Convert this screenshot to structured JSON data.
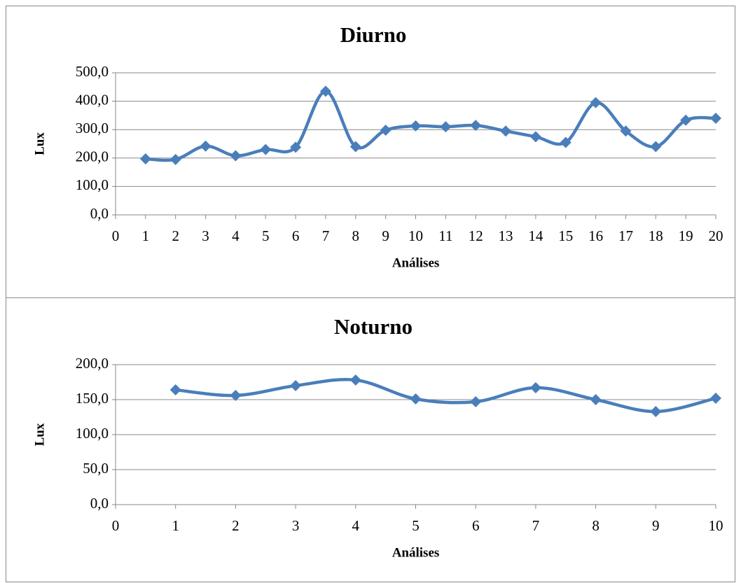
{
  "chart_data": [
    {
      "type": "line",
      "title": "Diurno",
      "y_label": "Lux",
      "x_label": "Análises",
      "color": "#4a7ebb",
      "grid": true,
      "smooth": true,
      "x": [
        1,
        2,
        3,
        4,
        5,
        6,
        7,
        8,
        9,
        10,
        11,
        12,
        13,
        14,
        15,
        16,
        17,
        18,
        19,
        20
      ],
      "values": [
        197,
        195,
        242,
        208,
        230,
        238,
        435,
        240,
        298,
        313,
        310,
        315,
        295,
        275,
        255,
        395,
        295,
        240,
        333,
        340
      ],
      "xlim": [
        0,
        20
      ],
      "xticks": [
        0,
        1,
        2,
        3,
        4,
        5,
        6,
        7,
        8,
        9,
        10,
        11,
        12,
        13,
        14,
        15,
        16,
        17,
        18,
        19,
        20
      ],
      "ylim": [
        0,
        500
      ],
      "yticks": [
        {
          "value": 0,
          "label": "0,0"
        },
        {
          "value": 100,
          "label": "100,0"
        },
        {
          "value": 200,
          "label": "200,0"
        },
        {
          "value": 300,
          "label": "300,0"
        },
        {
          "value": 400,
          "label": "400,0"
        },
        {
          "value": 500,
          "label": "500,0"
        }
      ]
    },
    {
      "type": "line",
      "title": "Noturno",
      "y_label": "Lux",
      "x_label": "Análises",
      "color": "#4a7ebb",
      "grid": true,
      "smooth": true,
      "x": [
        1,
        2,
        3,
        4,
        5,
        6,
        7,
        8,
        9,
        10
      ],
      "values": [
        164,
        156,
        170,
        178,
        151,
        147,
        167,
        150,
        133,
        152
      ],
      "xlim": [
        0,
        10
      ],
      "xticks": [
        0,
        1,
        2,
        3,
        4,
        5,
        6,
        7,
        8,
        9,
        10
      ],
      "ylim": [
        0,
        200
      ],
      "yticks": [
        {
          "value": 0,
          "label": "0,0"
        },
        {
          "value": 50,
          "label": "50,0"
        },
        {
          "value": 100,
          "label": "100,0"
        },
        {
          "value": 150,
          "label": "150,0"
        },
        {
          "value": 200,
          "label": "200,0"
        }
      ]
    }
  ]
}
